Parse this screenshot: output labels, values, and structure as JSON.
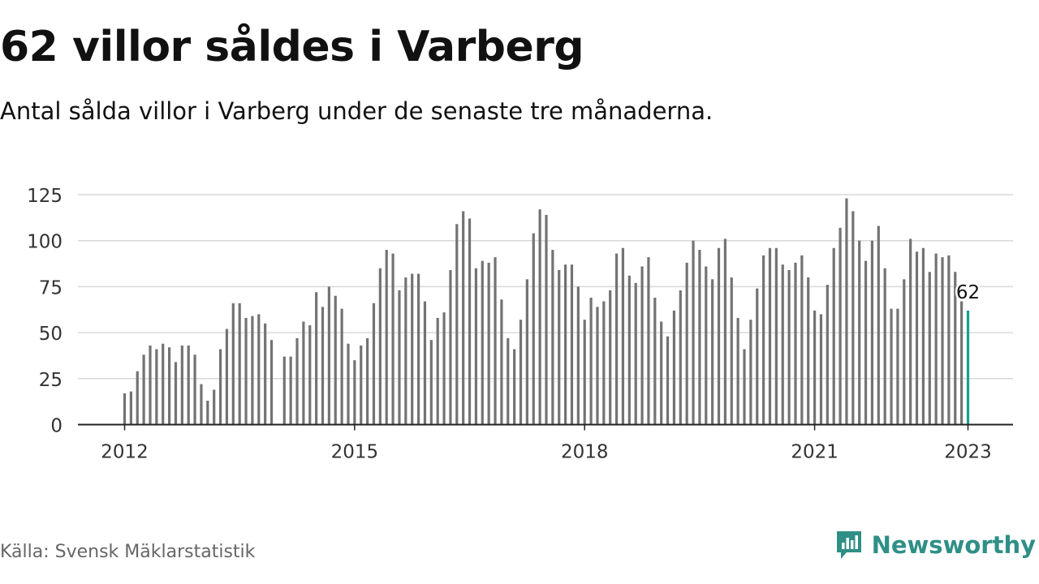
{
  "header": {
    "title": "62 villor såldes i Varberg",
    "subtitle": "Antal sålda villor i Varberg under de senaste tre månaderna."
  },
  "footer": {
    "source": "Källa: Svensk Mäklarstatistik",
    "brand": "Newsworthy"
  },
  "colors": {
    "bar": "#737373",
    "highlight": "#1a9e8f",
    "grid": "#d9d9d9",
    "axis": "#222222",
    "brand": "#2f8f86"
  },
  "chart_data": {
    "type": "bar",
    "title": "62 villor såldes i Varberg",
    "subtitle": "Antal sålda villor i Varberg under de senaste tre månaderna.",
    "xlabel": "",
    "ylabel": "",
    "ylim": [
      0,
      125
    ],
    "yticks": [
      0,
      25,
      50,
      75,
      100,
      125
    ],
    "grid": true,
    "x_start": "2012-01",
    "x_end": "2023-01",
    "xticks": [
      {
        "label": "2012",
        "date": "2012-01"
      },
      {
        "label": "2015",
        "date": "2015-01"
      },
      {
        "label": "2018",
        "date": "2018-01"
      },
      {
        "label": "2021",
        "date": "2021-01"
      },
      {
        "label": "2023",
        "date": "2023-01"
      }
    ],
    "annotation": {
      "label": "62",
      "date": "2023-01",
      "value": 62
    },
    "series": [
      {
        "values": [
          {
            "date": "2012-01",
            "value": 17
          },
          {
            "date": "2012-02",
            "value": 18
          },
          {
            "date": "2012-03",
            "value": 29
          },
          {
            "date": "2012-04",
            "value": 38
          },
          {
            "date": "2012-05",
            "value": 43
          },
          {
            "date": "2012-06",
            "value": 41
          },
          {
            "date": "2012-07",
            "value": 44
          },
          {
            "date": "2012-08",
            "value": 42
          },
          {
            "date": "2012-09",
            "value": 34
          },
          {
            "date": "2012-10",
            "value": 43
          },
          {
            "date": "2012-11",
            "value": 43
          },
          {
            "date": "2012-12",
            "value": 38
          },
          {
            "date": "2013-01",
            "value": 22
          },
          {
            "date": "2013-02",
            "value": 13
          },
          {
            "date": "2013-03",
            "value": 19
          },
          {
            "date": "2013-04",
            "value": 41
          },
          {
            "date": "2013-05",
            "value": 52
          },
          {
            "date": "2013-06",
            "value": 66
          },
          {
            "date": "2013-07",
            "value": 66
          },
          {
            "date": "2013-08",
            "value": 58
          },
          {
            "date": "2013-09",
            "value": 59
          },
          {
            "date": "2013-10",
            "value": 60
          },
          {
            "date": "2013-11",
            "value": 55
          },
          {
            "date": "2013-12",
            "value": 46
          },
          {
            "date": "2014-02",
            "value": 37
          },
          {
            "date": "2014-03",
            "value": 37
          },
          {
            "date": "2014-04",
            "value": 47
          },
          {
            "date": "2014-05",
            "value": 56
          },
          {
            "date": "2014-06",
            "value": 54
          },
          {
            "date": "2014-07",
            "value": 72
          },
          {
            "date": "2014-08",
            "value": 64
          },
          {
            "date": "2014-09",
            "value": 75
          },
          {
            "date": "2014-10",
            "value": 70
          },
          {
            "date": "2014-11",
            "value": 63
          },
          {
            "date": "2014-12",
            "value": 44
          },
          {
            "date": "2015-01",
            "value": 35
          },
          {
            "date": "2015-02",
            "value": 43
          },
          {
            "date": "2015-03",
            "value": 47
          },
          {
            "date": "2015-04",
            "value": 66
          },
          {
            "date": "2015-05",
            "value": 85
          },
          {
            "date": "2015-06",
            "value": 95
          },
          {
            "date": "2015-07",
            "value": 93
          },
          {
            "date": "2015-08",
            "value": 73
          },
          {
            "date": "2015-09",
            "value": 80
          },
          {
            "date": "2015-10",
            "value": 82
          },
          {
            "date": "2015-11",
            "value": 82
          },
          {
            "date": "2015-12",
            "value": 67
          },
          {
            "date": "2016-01",
            "value": 46
          },
          {
            "date": "2016-02",
            "value": 58
          },
          {
            "date": "2016-03",
            "value": 61
          },
          {
            "date": "2016-04",
            "value": 84
          },
          {
            "date": "2016-05",
            "value": 109
          },
          {
            "date": "2016-06",
            "value": 116
          },
          {
            "date": "2016-07",
            "value": 112
          },
          {
            "date": "2016-08",
            "value": 85
          },
          {
            "date": "2016-09",
            "value": 89
          },
          {
            "date": "2016-10",
            "value": 88
          },
          {
            "date": "2016-11",
            "value": 91
          },
          {
            "date": "2016-12",
            "value": 68
          },
          {
            "date": "2017-01",
            "value": 47
          },
          {
            "date": "2017-02",
            "value": 41
          },
          {
            "date": "2017-03",
            "value": 57
          },
          {
            "date": "2017-04",
            "value": 79
          },
          {
            "date": "2017-05",
            "value": 104
          },
          {
            "date": "2017-06",
            "value": 117
          },
          {
            "date": "2017-07",
            "value": 114
          },
          {
            "date": "2017-08",
            "value": 95
          },
          {
            "date": "2017-09",
            "value": 84
          },
          {
            "date": "2017-10",
            "value": 87
          },
          {
            "date": "2017-11",
            "value": 87
          },
          {
            "date": "2017-12",
            "value": 75
          },
          {
            "date": "2018-01",
            "value": 57
          },
          {
            "date": "2018-02",
            "value": 69
          },
          {
            "date": "2018-03",
            "value": 64
          },
          {
            "date": "2018-04",
            "value": 67
          },
          {
            "date": "2018-05",
            "value": 73
          },
          {
            "date": "2018-06",
            "value": 93
          },
          {
            "date": "2018-07",
            "value": 96
          },
          {
            "date": "2018-08",
            "value": 81
          },
          {
            "date": "2018-09",
            "value": 77
          },
          {
            "date": "2018-10",
            "value": 86
          },
          {
            "date": "2018-11",
            "value": 91
          },
          {
            "date": "2018-12",
            "value": 69
          },
          {
            "date": "2019-01",
            "value": 56
          },
          {
            "date": "2019-02",
            "value": 48
          },
          {
            "date": "2019-03",
            "value": 62
          },
          {
            "date": "2019-04",
            "value": 73
          },
          {
            "date": "2019-05",
            "value": 88
          },
          {
            "date": "2019-06",
            "value": 100
          },
          {
            "date": "2019-07",
            "value": 95
          },
          {
            "date": "2019-08",
            "value": 86
          },
          {
            "date": "2019-09",
            "value": 79
          },
          {
            "date": "2019-10",
            "value": 96
          },
          {
            "date": "2019-11",
            "value": 101
          },
          {
            "date": "2019-12",
            "value": 80
          },
          {
            "date": "2020-01",
            "value": 58
          },
          {
            "date": "2020-02",
            "value": 41
          },
          {
            "date": "2020-03",
            "value": 57
          },
          {
            "date": "2020-04",
            "value": 74
          },
          {
            "date": "2020-05",
            "value": 92
          },
          {
            "date": "2020-06",
            "value": 96
          },
          {
            "date": "2020-07",
            "value": 96
          },
          {
            "date": "2020-08",
            "value": 87
          },
          {
            "date": "2020-09",
            "value": 84
          },
          {
            "date": "2020-10",
            "value": 88
          },
          {
            "date": "2020-11",
            "value": 92
          },
          {
            "date": "2020-12",
            "value": 80
          },
          {
            "date": "2021-01",
            "value": 62
          },
          {
            "date": "2021-02",
            "value": 60
          },
          {
            "date": "2021-03",
            "value": 76
          },
          {
            "date": "2021-04",
            "value": 96
          },
          {
            "date": "2021-05",
            "value": 107
          },
          {
            "date": "2021-06",
            "value": 123
          },
          {
            "date": "2021-07",
            "value": 116
          },
          {
            "date": "2021-08",
            "value": 100
          },
          {
            "date": "2021-09",
            "value": 89
          },
          {
            "date": "2021-10",
            "value": 100
          },
          {
            "date": "2021-11",
            "value": 108
          },
          {
            "date": "2021-12",
            "value": 85
          },
          {
            "date": "2022-01",
            "value": 63
          },
          {
            "date": "2022-02",
            "value": 63
          },
          {
            "date": "2022-03",
            "value": 79
          },
          {
            "date": "2022-04",
            "value": 101
          },
          {
            "date": "2022-05",
            "value": 94
          },
          {
            "date": "2022-06",
            "value": 96
          },
          {
            "date": "2022-07",
            "value": 83
          },
          {
            "date": "2022-08",
            "value": 93
          },
          {
            "date": "2022-09",
            "value": 91
          },
          {
            "date": "2022-10",
            "value": 92
          },
          {
            "date": "2022-11",
            "value": 83
          },
          {
            "date": "2022-12",
            "value": 67
          },
          {
            "date": "2023-01",
            "value": 62
          }
        ]
      }
    ]
  }
}
